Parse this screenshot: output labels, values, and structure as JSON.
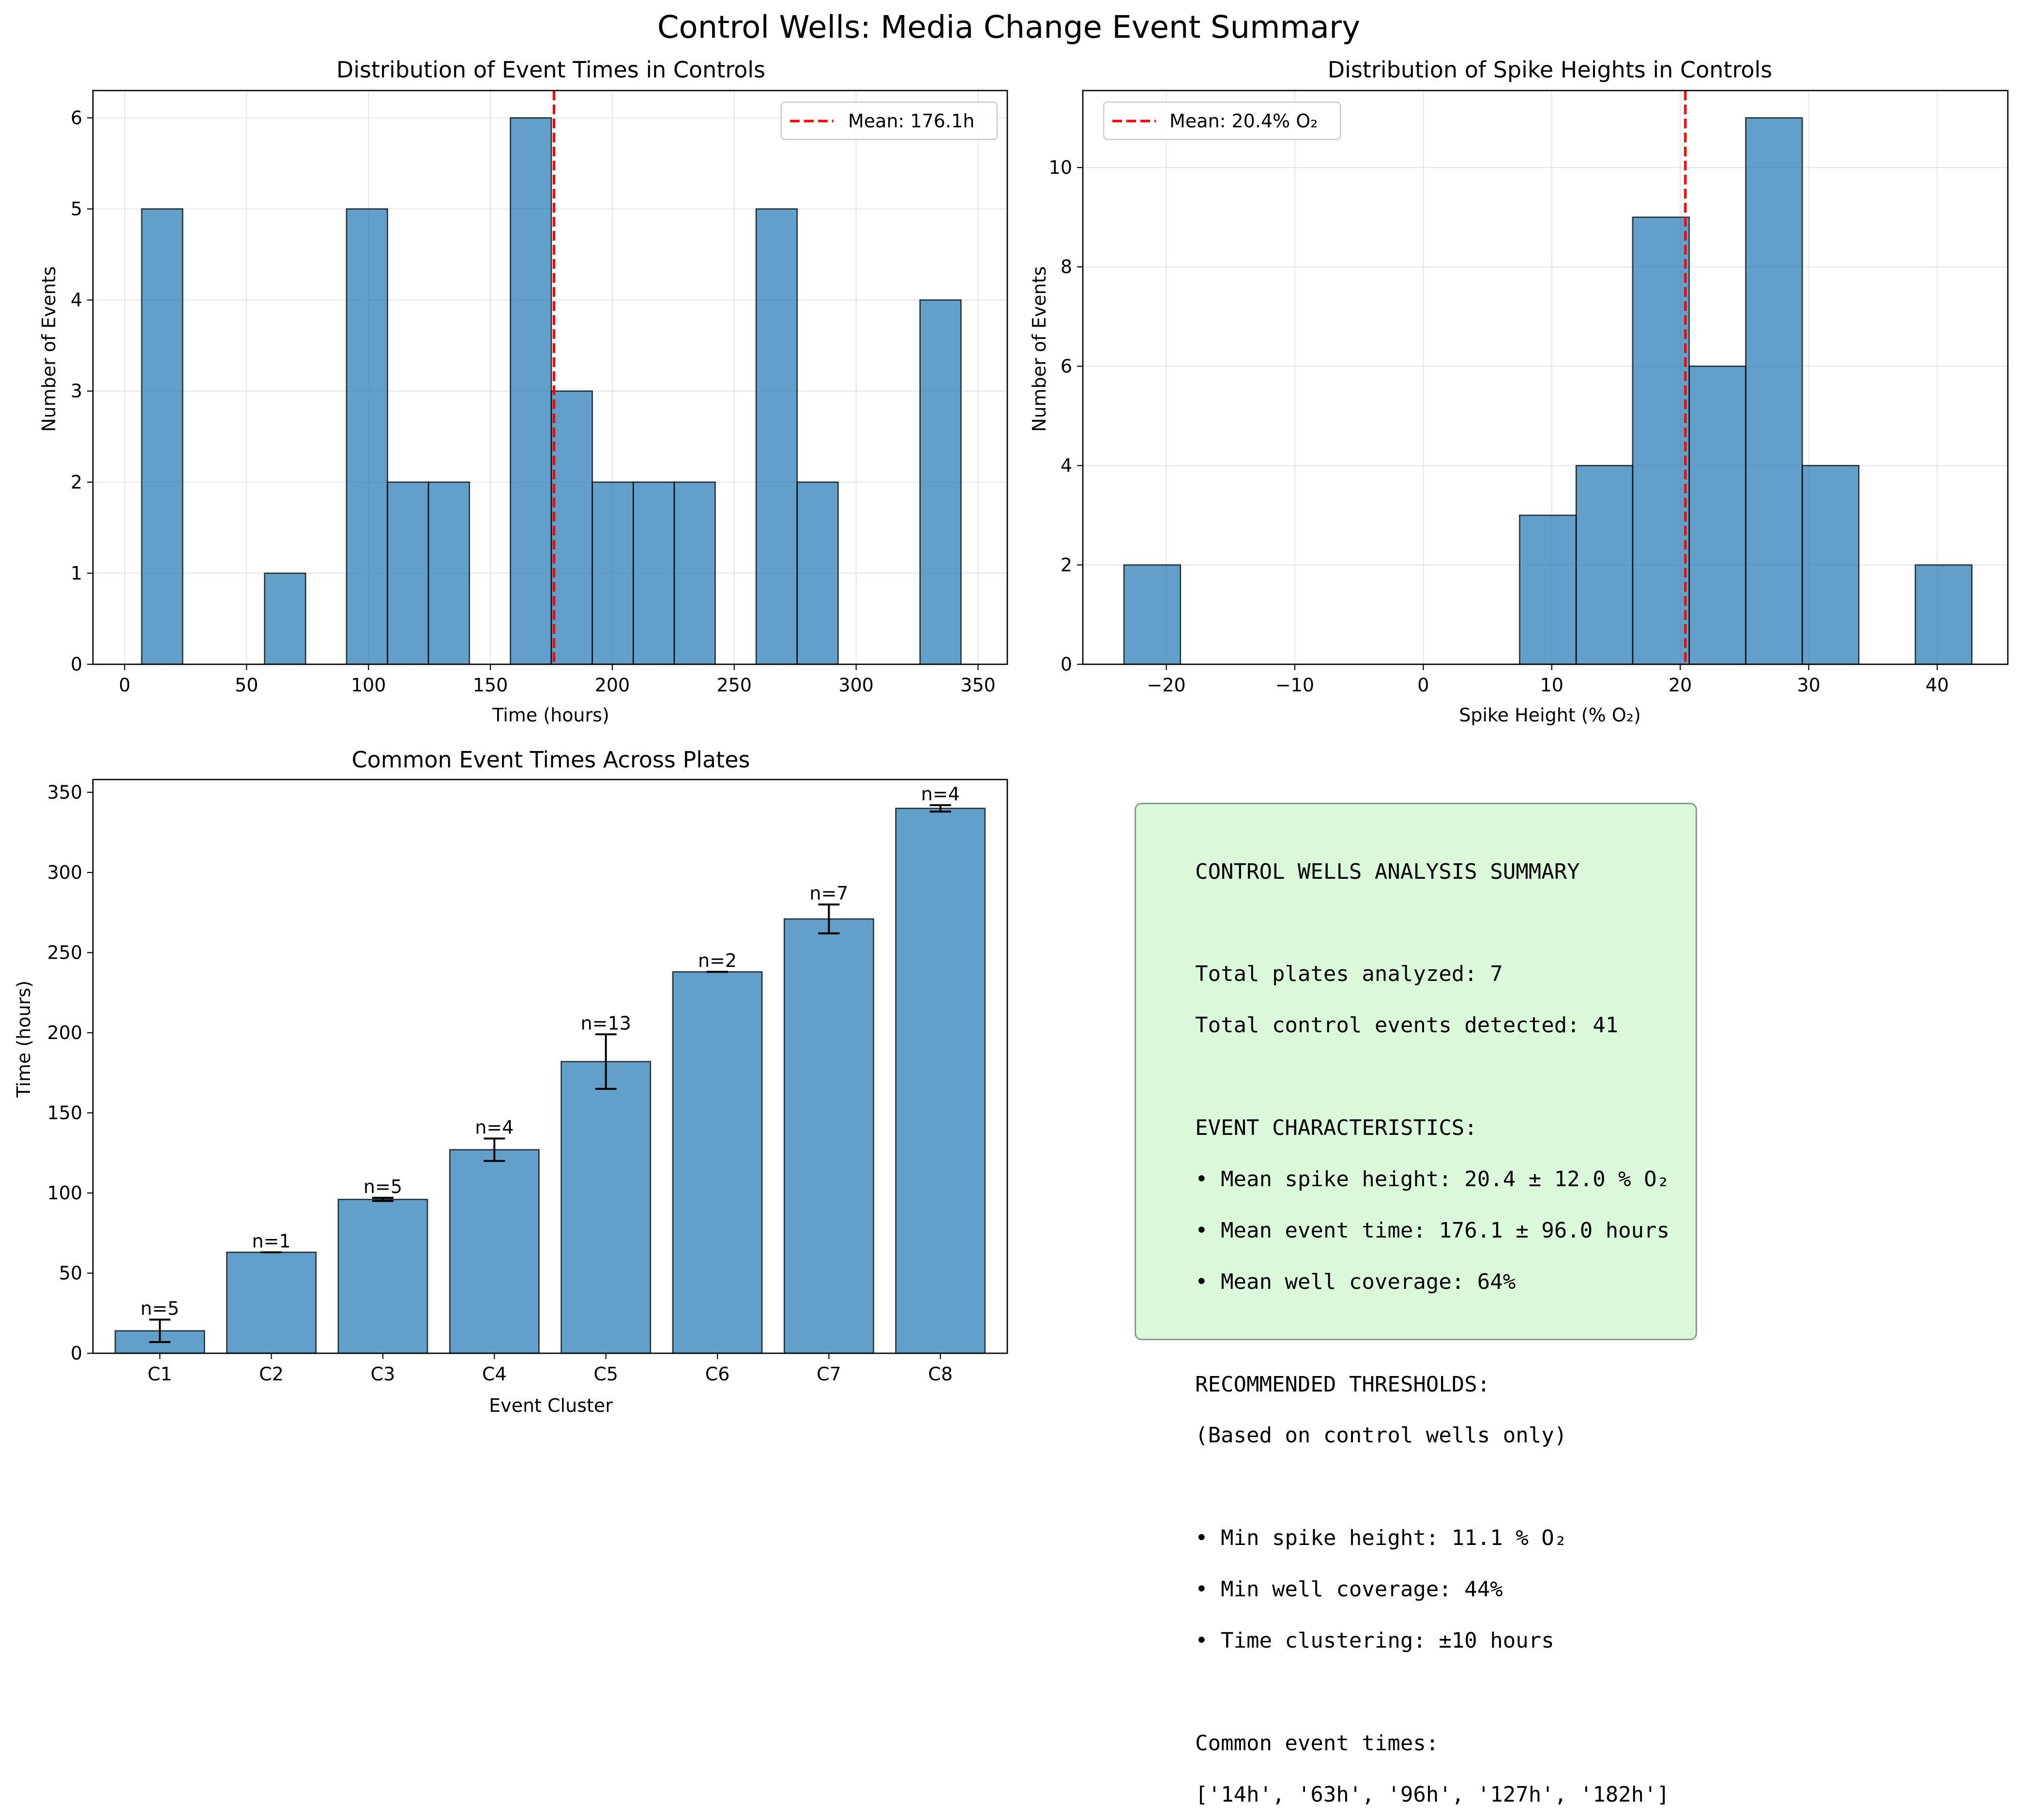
{
  "figure_title": "Control Wells: Media Change Event Summary",
  "colors": {
    "bar": "#1f77b4",
    "mean_line": "#ff0000",
    "summary_bg": "#dbf7d9"
  },
  "chart_data": [
    {
      "type": "bar",
      "title": "Distribution of Event Times in Controls",
      "xlabel": "Time (hours)",
      "ylabel": "Number of Events",
      "xlim": [
        -13,
        362
      ],
      "ylim": [
        0,
        6.3
      ],
      "xticks": [
        0,
        50,
        100,
        150,
        200,
        250,
        300,
        350
      ],
      "yticks": [
        0,
        1,
        2,
        3,
        4,
        5,
        6
      ],
      "bin_edges": [
        7,
        23.8,
        40.6,
        57.4,
        74.2,
        91,
        107.8,
        124.6,
        141.4,
        158.2,
        175,
        191.8,
        208.6,
        225.4,
        242.2,
        259,
        275.8,
        292.6,
        309.4,
        326.2,
        343
      ],
      "values": [
        5,
        0,
        0,
        1,
        0,
        5,
        2,
        2,
        0,
        6,
        3,
        2,
        2,
        2,
        0,
        5,
        2,
        0,
        0,
        4
      ],
      "mean": 176.1,
      "legend": {
        "label": "Mean: 176.1h",
        "placement": "upper right"
      },
      "grid": true
    },
    {
      "type": "bar",
      "title": "Distribution of Spike Heights in Controls",
      "xlabel": "Spike Height (% O₂)",
      "ylabel": "Number of Events",
      "xlim": [
        -26.5,
        45.5
      ],
      "ylim": [
        0,
        11.55
      ],
      "xticks": [
        -20,
        -10,
        0,
        10,
        20,
        30,
        40
      ],
      "xtick_labels": [
        "−20",
        "−10",
        "0",
        "10",
        "20",
        "30",
        "40"
      ],
      "yticks": [
        0,
        2,
        4,
        6,
        8,
        10
      ],
      "bin_edges": [
        -23.3,
        -18.9,
        -14.5,
        -10.1,
        -5.7,
        -1.3,
        3.1,
        7.5,
        11.9,
        16.3,
        20.7,
        25.1,
        29.5,
        33.9,
        38.3,
        42.7
      ],
      "values": [
        2,
        0,
        0,
        0,
        0,
        0,
        0,
        3,
        4,
        9,
        6,
        11,
        4,
        0,
        2
      ],
      "mean": 20.4,
      "legend": {
        "label": "Mean: 20.4% O₂",
        "placement": "upper left"
      },
      "grid": true
    },
    {
      "type": "bar",
      "title": "Common Event Times Across Plates",
      "xlabel": "Event Cluster",
      "ylabel": "Time (hours)",
      "ylim": [
        0,
        358
      ],
      "yticks": [
        0,
        50,
        100,
        150,
        200,
        250,
        300,
        350
      ],
      "categories": [
        "C1",
        "C2",
        "C3",
        "C4",
        "C5",
        "C6",
        "C7",
        "C8"
      ],
      "values": [
        14,
        63,
        96,
        127,
        182,
        238,
        271,
        340
      ],
      "errors": [
        7,
        0,
        1,
        7,
        17,
        0,
        9,
        2
      ],
      "annotations": [
        "n=5",
        "n=1",
        "n=5",
        "n=4",
        "n=13",
        "n=2",
        "n=7",
        "n=4"
      ],
      "grid": false
    }
  ],
  "summary": {
    "lines": [
      "CONTROL WELLS ANALYSIS SUMMARY",
      "",
      "Total plates analyzed: 7",
      "Total control events detected: 41",
      "",
      "EVENT CHARACTERISTICS:",
      "• Mean spike height: 20.4 ± 12.0 % O₂",
      "• Mean event time: 176.1 ± 96.0 hours",
      "• Mean well coverage: 64%",
      "",
      "RECOMMENDED THRESHOLDS:",
      "(Based on control wells only)",
      "",
      "• Min spike height: 11.1 % O₂",
      "• Min well coverage: 44%",
      "• Time clustering: ±10 hours",
      "",
      "Common event times:",
      "['14h', '63h', '96h', '127h', '182h']"
    ]
  }
}
